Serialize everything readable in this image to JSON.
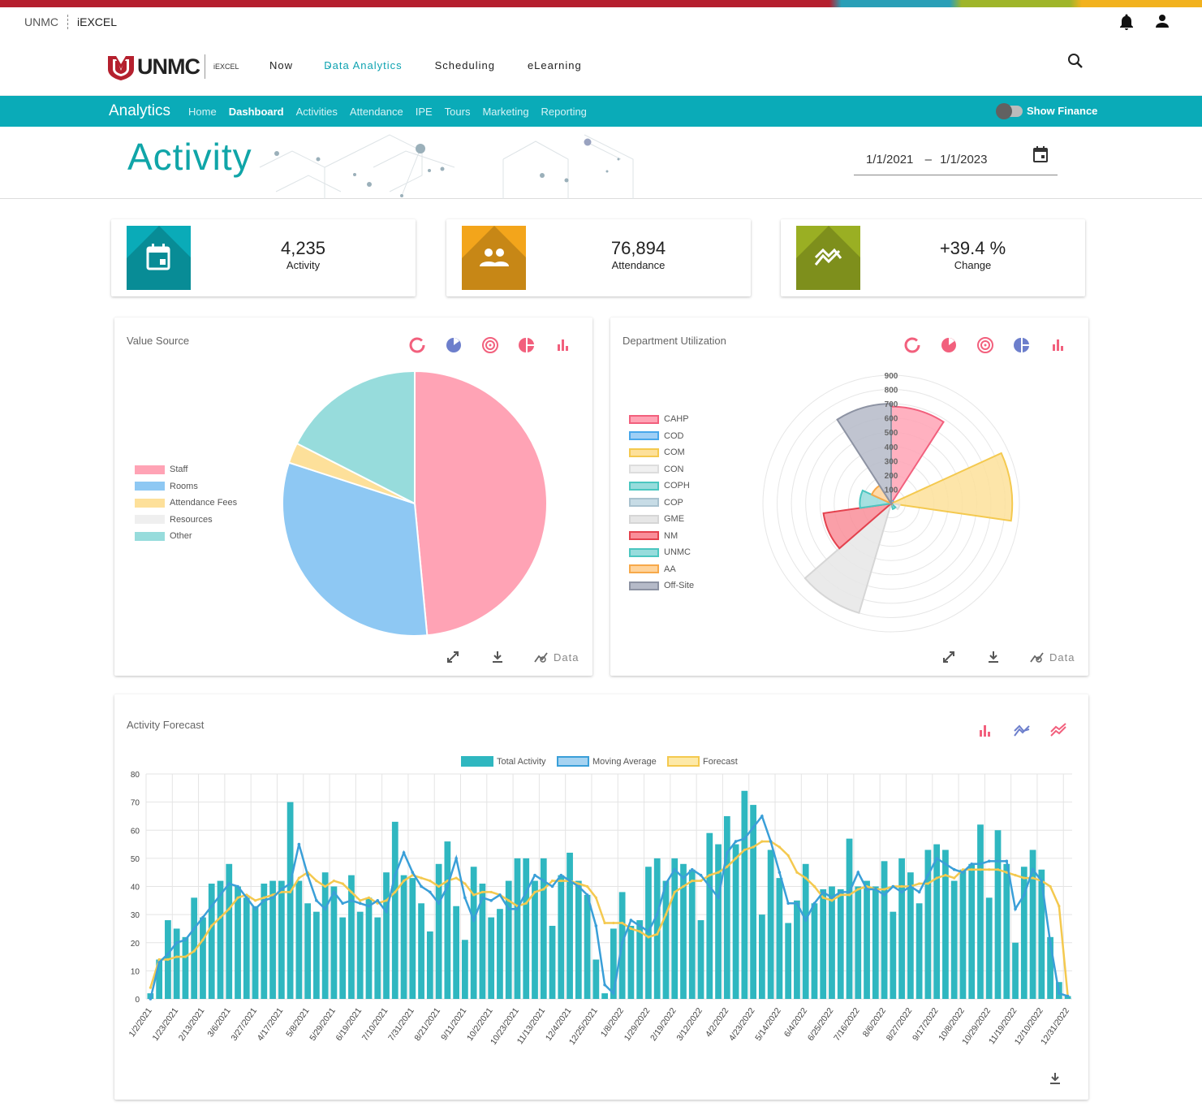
{
  "topbar": {
    "org": "UNMC",
    "app": "iEXCEL"
  },
  "logo": {
    "word": "UNMC",
    "small": "iEXCEL"
  },
  "nav": {
    "now": "Now",
    "analytics": "Data Analytics",
    "scheduling": "Scheduling",
    "elearning": "eLearning"
  },
  "subnav": {
    "brand": "Analytics",
    "tabs": [
      "Home",
      "Dashboard",
      "Activities",
      "Attendance",
      "IPE",
      "Tours",
      "Marketing",
      "Reporting"
    ],
    "toggle_label": "Show Finance"
  },
  "hero": {
    "title": "Activity",
    "date_from": "1/1/2021",
    "date_sep": "–",
    "date_to": "1/1/2023"
  },
  "kpis": [
    {
      "value": "4,235",
      "label": "Activity",
      "color": "#0aabb8"
    },
    {
      "value": "76,894",
      "label": "Attendance",
      "color": "#f3a51b"
    },
    {
      "value": "+39.4 %",
      "label": "Change",
      "color": "#9aaf23"
    }
  ],
  "value_source": {
    "title": "Value Source",
    "data_label": "Data",
    "chart_data": {
      "type": "pie",
      "categories": [
        "Staff",
        "Rooms",
        "Attendance Fees",
        "Resources",
        "Other"
      ],
      "values": [
        48.5,
        31.5,
        2.5,
        0,
        17.5
      ],
      "colors": [
        "#ffa3b5",
        "#8ec8f3",
        "#fde09a",
        "#efefef",
        "#97dcdc"
      ]
    }
  },
  "department_utilization": {
    "title": "Department Utilization",
    "data_label": "Data",
    "chart_data": {
      "type": "polarArea",
      "categories": [
        "CAHP",
        "COD",
        "COM",
        "CON",
        "COPH",
        "COP",
        "GME",
        "NM",
        "UNMC",
        "AA",
        "Off-Site"
      ],
      "values": [
        680,
        20,
        850,
        60,
        40,
        15,
        800,
        480,
        220,
        150,
        700
      ],
      "fills": [
        "#ffa3b5",
        "#9fcff5",
        "#fde09a",
        "#f0f0f0",
        "#97dcdc",
        "#c7dce6",
        "#e6e6e6",
        "#f98e99",
        "#97dcdc",
        "#ffd39a",
        "#b5bac8"
      ],
      "strokes": [
        "#f2607d",
        "#48a7ea",
        "#f4c94f",
        "#dddddd",
        "#4bc6c0",
        "#a9c2cf",
        "#d6d6d6",
        "#e4424e",
        "#4bc6c0",
        "#f7a94a",
        "#8d93a3"
      ],
      "ticks": [
        "100",
        "200",
        "300",
        "400",
        "500",
        "600",
        "700",
        "800",
        "900"
      ],
      "rmax": 900
    }
  },
  "forecast": {
    "title": "Activity Forecast",
    "chart_data": {
      "type": "bar+line",
      "legend": [
        "Total Activity",
        "Moving Average",
        "Forecast"
      ],
      "yticks": [
        "0",
        "10",
        "20",
        "30",
        "40",
        "50",
        "60",
        "70",
        "80"
      ],
      "ylim": [
        0,
        80
      ],
      "xlabels": [
        "1/2/2021",
        "1/23/2021",
        "2/13/2021",
        "3/6/2021",
        "3/27/2021",
        "4/17/2021",
        "5/8/2021",
        "5/29/2021",
        "6/19/2021",
        "7/10/2021",
        "7/31/2021",
        "8/21/2021",
        "9/11/2021",
        "10/2/2021",
        "10/23/2021",
        "11/13/2021",
        "12/4/2021",
        "12/25/2021",
        "1/8/2022",
        "1/29/2022",
        "2/19/2022",
        "3/12/2022",
        "4/2/2022",
        "4/23/2022",
        "5/14/2022",
        "6/4/2022",
        "6/25/2022",
        "7/16/2022",
        "8/6/2022",
        "8/27/2022",
        "9/17/2022",
        "10/8/2022",
        "10/29/2022",
        "11/19/2022",
        "12/10/2022",
        "12/31/2022"
      ],
      "total_activity": [
        2,
        14,
        28,
        25,
        22,
        36,
        29,
        41,
        42,
        48,
        40,
        36,
        33,
        41,
        42,
        42,
        70,
        42,
        34,
        31,
        45,
        40,
        29,
        44,
        31,
        36,
        29,
        45,
        63,
        44,
        43,
        34,
        24,
        48,
        56,
        33,
        21,
        47,
        41,
        29,
        32,
        42,
        50,
        50,
        42,
        50,
        26,
        44,
        52,
        42,
        37,
        14,
        2,
        25,
        38,
        26,
        28,
        47,
        50,
        42,
        50,
        48,
        46,
        28,
        59,
        55,
        65,
        55,
        74,
        69,
        30,
        53,
        43,
        27,
        35,
        48,
        34,
        39,
        40,
        39,
        57,
        40,
        42,
        40,
        49,
        31,
        50,
        45,
        34,
        53,
        55,
        53,
        42,
        46,
        48,
        62,
        36,
        60,
        48,
        20,
        47,
        53,
        46,
        22,
        6,
        1
      ],
      "moving_average": [
        0,
        13,
        16,
        20,
        21,
        25,
        29,
        33,
        37,
        41,
        40,
        36,
        32,
        35,
        36,
        39,
        41,
        55,
        44,
        35,
        32,
        38,
        34,
        35,
        34,
        33,
        35,
        31,
        44,
        52,
        45,
        40,
        38,
        34,
        40,
        50,
        36,
        28,
        36,
        35,
        37,
        32,
        32,
        38,
        44,
        42,
        40,
        44,
        42,
        40,
        37,
        26,
        5,
        2,
        20,
        28,
        26,
        24,
        30,
        41,
        46,
        43,
        46,
        44,
        40,
        36,
        52,
        56,
        57,
        61,
        65,
        56,
        45,
        34,
        34,
        28,
        34,
        38,
        36,
        38,
        38,
        45,
        39,
        39,
        37,
        40,
        38,
        40,
        38,
        44,
        50,
        48,
        46,
        45,
        48,
        48,
        49,
        49,
        49,
        32,
        37,
        46,
        42,
        20,
        2,
        1
      ],
      "forecast": [
        4,
        14,
        14,
        15,
        15,
        17,
        21,
        26,
        29,
        32,
        36,
        37,
        35,
        36,
        37,
        38,
        38,
        43,
        45,
        42,
        40,
        42,
        41,
        38,
        35,
        36,
        34,
        35,
        38,
        42,
        44,
        43,
        42,
        40,
        42,
        43,
        41,
        37,
        38,
        38,
        37,
        35,
        33,
        34,
        38,
        39,
        42,
        42,
        42,
        41,
        40,
        36,
        27,
        27,
        27,
        25,
        24,
        22,
        23,
        30,
        38,
        40,
        42,
        42,
        44,
        45,
        47,
        50,
        53,
        54,
        56,
        56,
        54,
        51,
        45,
        43,
        40,
        36,
        35,
        37,
        37,
        39,
        40,
        39,
        39,
        40,
        40,
        40,
        41,
        41,
        43,
        44,
        43,
        46,
        46,
        46,
        46,
        46,
        45,
        44,
        43,
        43,
        42,
        40,
        33,
        1
      ],
      "colors": {
        "bar": "#2fb7c0",
        "avg": "#3a9fd8",
        "forecast": "#f4c94f"
      }
    }
  }
}
